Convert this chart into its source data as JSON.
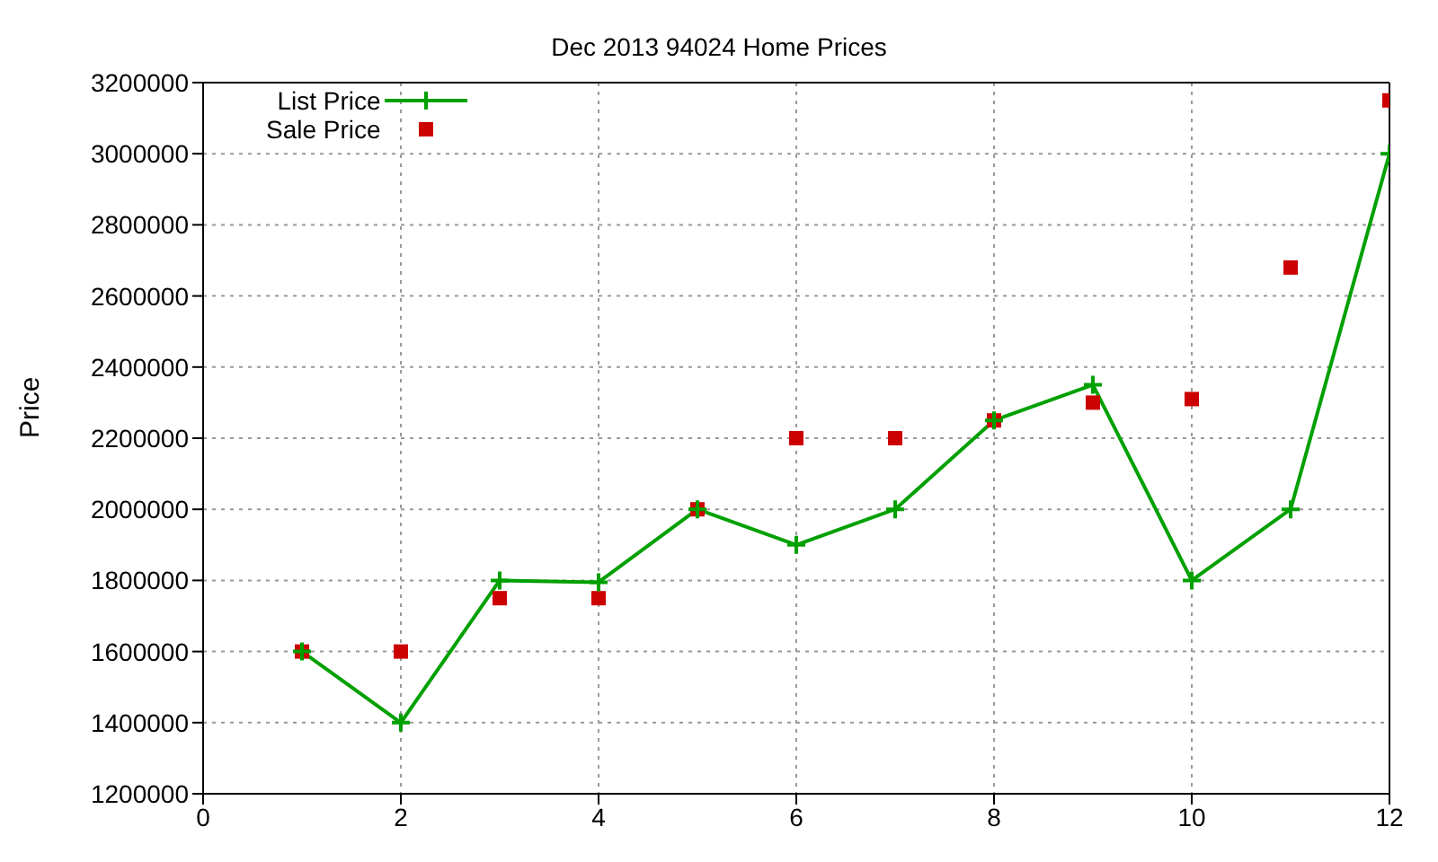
{
  "chart_data": {
    "type": "line",
    "title": "Dec 2013 94024 Home Prices",
    "ylabel": "Price",
    "x": [
      1,
      2,
      3,
      4,
      5,
      6,
      7,
      8,
      9,
      10,
      11,
      12
    ],
    "series": [
      {
        "name": "List Price",
        "color": "#00a000",
        "marker": "cross",
        "values": [
          1600000,
          1400000,
          1800000,
          1795000,
          2000000,
          1900000,
          2000000,
          2250000,
          2350000,
          1800000,
          2000000,
          3000000
        ]
      },
      {
        "name": "Sale Price",
        "type": "scatter",
        "color": "#cc0000",
        "marker": "square",
        "values": [
          1600000,
          1600000,
          1750000,
          1750000,
          2000000,
          2200000,
          2200000,
          2250000,
          2300000,
          2310000,
          2680000,
          3150000
        ]
      }
    ],
    "xlim": [
      0,
      12
    ],
    "xticks": [
      0,
      2,
      4,
      6,
      8,
      10,
      12
    ],
    "ylim": [
      1200000,
      3200000
    ],
    "yticks": [
      1200000,
      1400000,
      1600000,
      1800000,
      2000000,
      2200000,
      2400000,
      2600000,
      2800000,
      3000000,
      3200000
    ],
    "grid": true,
    "legend": "top left"
  }
}
